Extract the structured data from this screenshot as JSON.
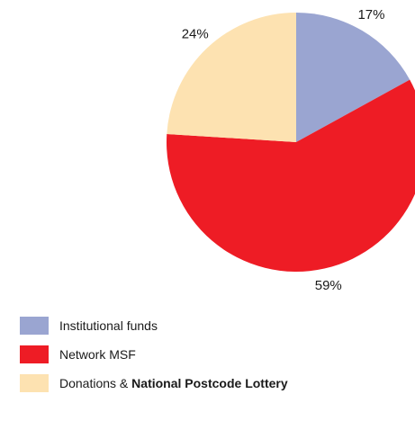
{
  "chart_data": {
    "type": "pie",
    "title": "",
    "slices": [
      {
        "name": "Institutional funds",
        "value": 17,
        "label": "17%",
        "color": "#9aa5d1"
      },
      {
        "name": "Network MSF",
        "value": 59,
        "label": "59%",
        "color": "#ee1c25"
      },
      {
        "name": "Donations & National Postcode Lottery",
        "value": 24,
        "label": "24%",
        "color": "#fde2b1"
      }
    ],
    "start_angle_deg": 0,
    "direction": "clockwise"
  },
  "legend": [
    {
      "text": "Institutional funds",
      "bold_text": "",
      "color": "#9aa5d1"
    },
    {
      "text": "Network MSF",
      "bold_text": "",
      "color": "#ee1c25"
    },
    {
      "text": "Donations & ",
      "bold_text": "National Postcode Lottery",
      "color": "#fde2b1"
    }
  ]
}
